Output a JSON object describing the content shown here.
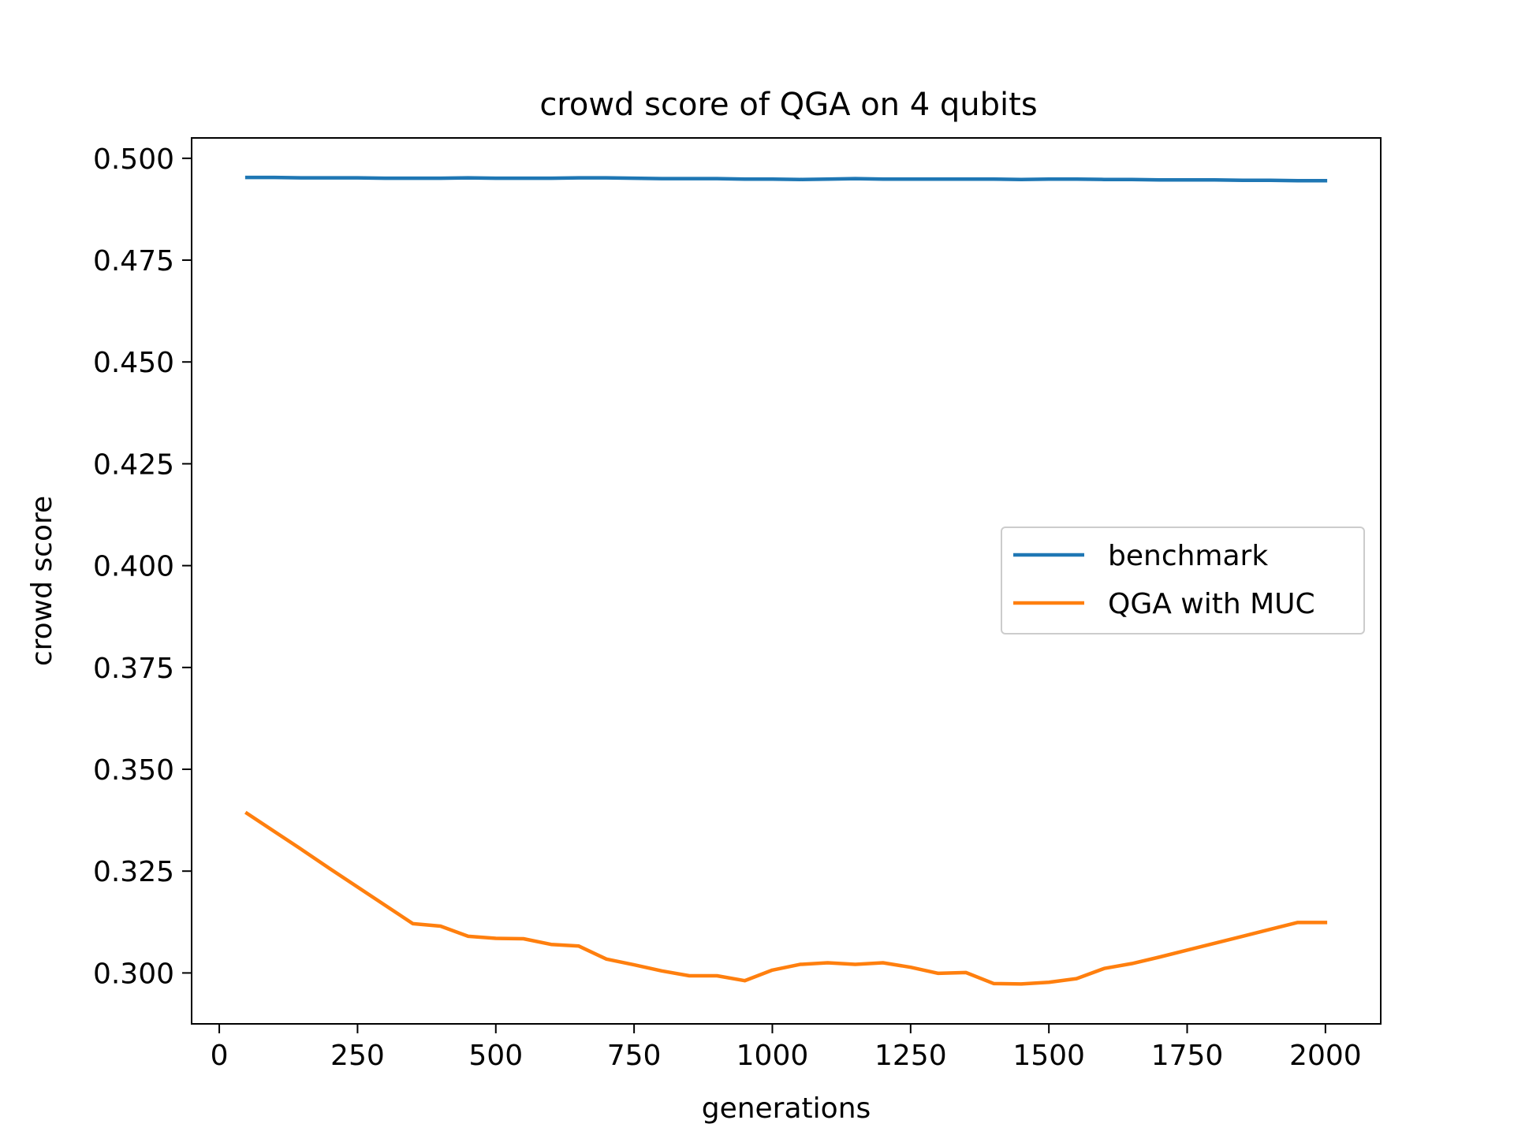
{
  "chart_data": {
    "type": "line",
    "title": "crowd score of QGA on 4 qubits",
    "xlabel": "generations",
    "ylabel": "crowd score",
    "xlim": [
      -50,
      2100
    ],
    "ylim": [
      0.2875,
      0.505
    ],
    "xticks": [
      0,
      250,
      500,
      750,
      1000,
      1250,
      1500,
      1750,
      2000
    ],
    "xtick_labels": [
      "0",
      "250",
      "500",
      "750",
      "1000",
      "1250",
      "1500",
      "1750",
      "2000"
    ],
    "yticks": [
      0.3,
      0.325,
      0.35,
      0.375,
      0.4,
      0.425,
      0.45,
      0.475,
      0.5
    ],
    "ytick_labels": [
      "0.300",
      "0.325",
      "0.350",
      "0.375",
      "0.400",
      "0.425",
      "0.450",
      "0.475",
      "0.500"
    ],
    "grid": false,
    "legend_position": "center-right",
    "x": [
      50,
      100,
      150,
      200,
      250,
      300,
      350,
      400,
      450,
      500,
      550,
      600,
      650,
      700,
      750,
      800,
      850,
      900,
      950,
      1000,
      1050,
      1100,
      1150,
      1200,
      1250,
      1300,
      1350,
      1400,
      1450,
      1500,
      1550,
      1600,
      1650,
      1700,
      1750,
      1800,
      1850,
      1900,
      1950,
      2000
    ],
    "series": [
      {
        "name": "benchmark",
        "color": "#1f77b4",
        "values": [
          0.4953,
          0.4953,
          0.4952,
          0.4952,
          0.4952,
          0.4951,
          0.4951,
          0.4951,
          0.4952,
          0.4951,
          0.4951,
          0.4951,
          0.4952,
          0.4952,
          0.4951,
          0.495,
          0.495,
          0.495,
          0.4949,
          0.4949,
          0.4948,
          0.4949,
          0.495,
          0.4949,
          0.4949,
          0.4949,
          0.4949,
          0.4949,
          0.4948,
          0.4949,
          0.4949,
          0.4948,
          0.4948,
          0.4947,
          0.4947,
          0.4947,
          0.4946,
          0.4946,
          0.4945,
          0.4945
        ]
      },
      {
        "name": "QGA with MUC",
        "color": "#ff7f0e",
        "values": [
          0.3392,
          0.3347,
          0.3302,
          0.3256,
          0.3211,
          0.3166,
          0.3121,
          0.3115,
          0.309,
          0.3085,
          0.3084,
          0.307,
          0.3066,
          0.3034,
          0.302,
          0.3005,
          0.2993,
          0.2993,
          0.2981,
          0.3007,
          0.3021,
          0.3025,
          0.3021,
          0.3025,
          0.3014,
          0.2999,
          0.3001,
          0.2974,
          0.2973,
          0.2977,
          0.2986,
          0.3011,
          0.3023,
          0.3039,
          0.3056,
          0.3073,
          0.309,
          0.3107,
          0.3124,
          0.3124
        ]
      }
    ]
  }
}
